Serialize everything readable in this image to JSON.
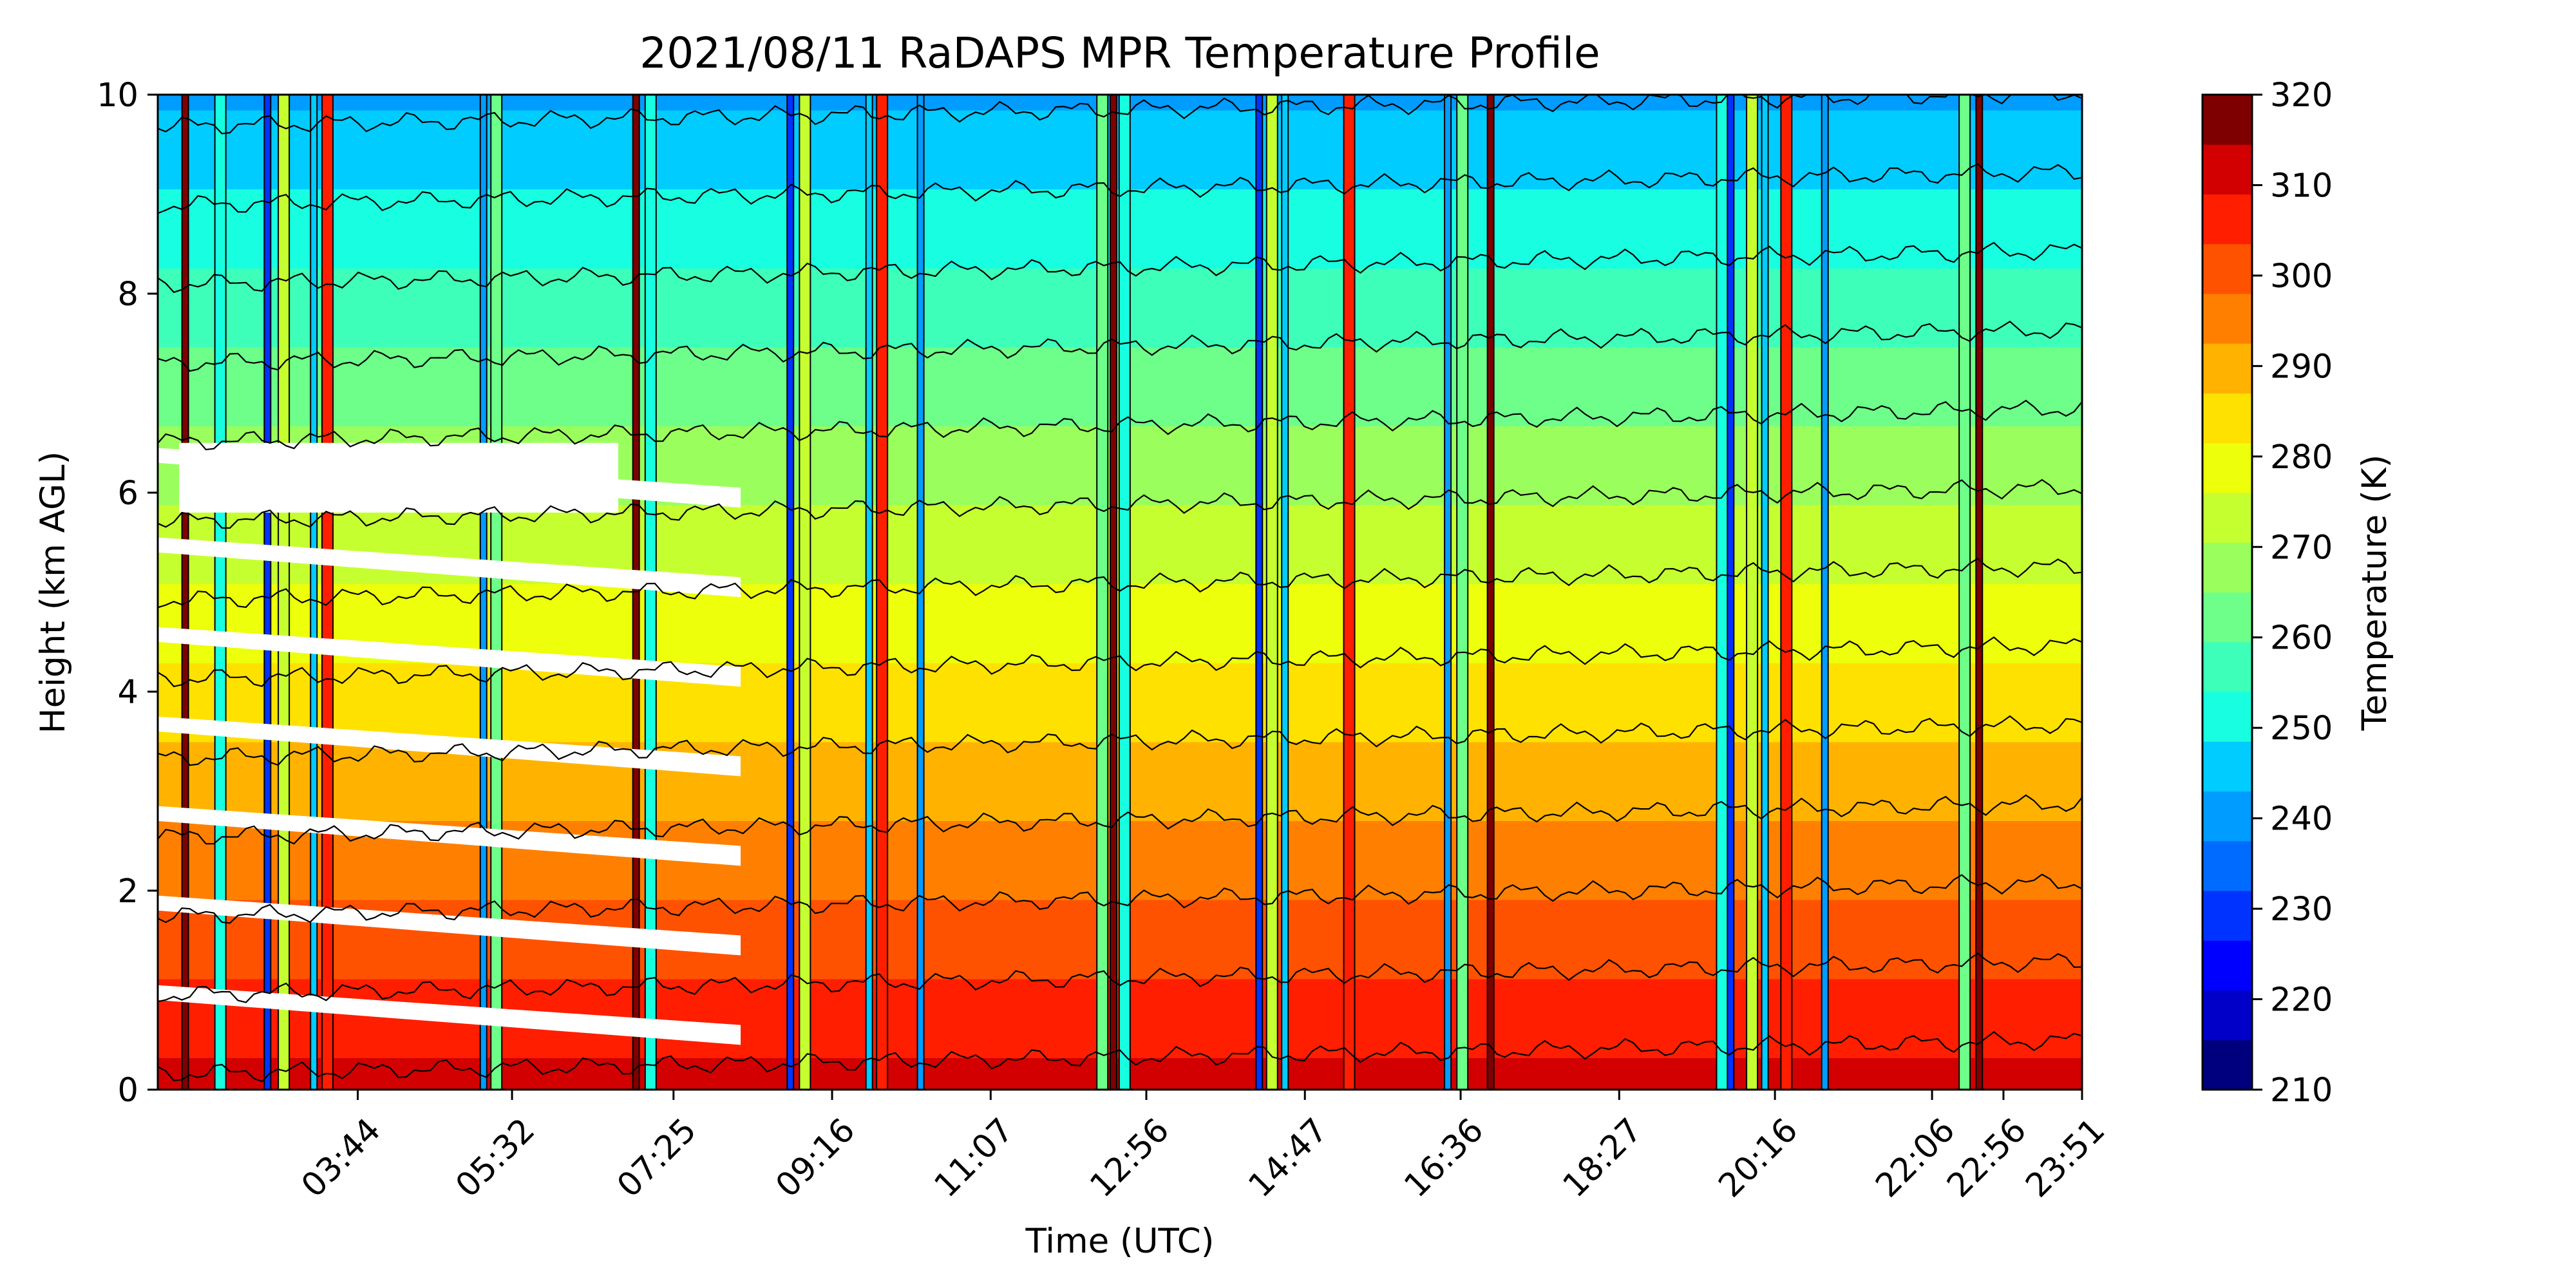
{
  "chart_data": {
    "type": "heatmap",
    "subtype": "filled-contour time-height",
    "title": "2021/08/11 RaDAPS MPR Temperature Profile",
    "xlabel": "Time (UTC)",
    "ylabel": "Height (km AGL)",
    "x_unit": "hours UTC",
    "xlim": [
      1.4,
      23.85
    ],
    "ylim": [
      0,
      10
    ],
    "x_ticks": [
      {
        "value": 3.733,
        "label": "03:44"
      },
      {
        "value": 5.533,
        "label": "05:32"
      },
      {
        "value": 7.417,
        "label": "07:25"
      },
      {
        "value": 9.267,
        "label": "09:16"
      },
      {
        "value": 11.117,
        "label": "11:07"
      },
      {
        "value": 12.933,
        "label": "12:56"
      },
      {
        "value": 14.783,
        "label": "14:47"
      },
      {
        "value": 16.6,
        "label": "16:36"
      },
      {
        "value": 18.45,
        "label": "18:27"
      },
      {
        "value": 20.267,
        "label": "20:16"
      },
      {
        "value": 22.1,
        "label": "22:06"
      },
      {
        "value": 22.933,
        "label": "22:56"
      },
      {
        "value": 23.85,
        "label": "23:51"
      }
    ],
    "y_ticks": [
      0,
      2,
      4,
      6,
      8,
      10
    ],
    "colorbar": {
      "label": "Temperature (K)",
      "range": [
        210,
        320
      ],
      "step": 5,
      "tick_values": [
        210,
        220,
        230,
        240,
        250,
        260,
        270,
        280,
        290,
        300,
        310,
        320
      ],
      "colors": [
        "#00007f",
        "#0000c8",
        "#0000ff",
        "#0033ff",
        "#006cff",
        "#009cff",
        "#00ccff",
        "#17ffe0",
        "#3dffb9",
        "#6dff8a",
        "#9aff5c",
        "#c6ff30",
        "#edff0a",
        "#ffe100",
        "#ffb300",
        "#ff8000",
        "#ff5200",
        "#ff1e00",
        "#d20000",
        "#7f0000"
      ]
    },
    "profile": {
      "surface_temperature_K": 302,
      "lapse_rate_K_per_km": 6.3,
      "heights_km": [
        0,
        1,
        2,
        3,
        4,
        5,
        6,
        7,
        8,
        9,
        10
      ],
      "temperatures_K": [
        302,
        295.7,
        289.4,
        283.1,
        276.8,
        270.5,
        264.2,
        257.9,
        251.6,
        245.3,
        239
      ]
    },
    "missing_data": {
      "start_time": 1.4,
      "end_time": 8.2,
      "note": "white gaps"
    },
    "anomaly_spikes_times": [
      1.72,
      2.13,
      2.68,
      2.87,
      3.22,
      3.38,
      5.2,
      5.35,
      6.98,
      7.15,
      8.78,
      8.95,
      9.7,
      9.85,
      10.3,
      12.42,
      12.55,
      12.68,
      14.25,
      14.4,
      14.55,
      15.3,
      16.45,
      16.62,
      16.95,
      19.65,
      19.75,
      20.0,
      20.15,
      20.4,
      20.85,
      22.48,
      22.65
    ]
  }
}
